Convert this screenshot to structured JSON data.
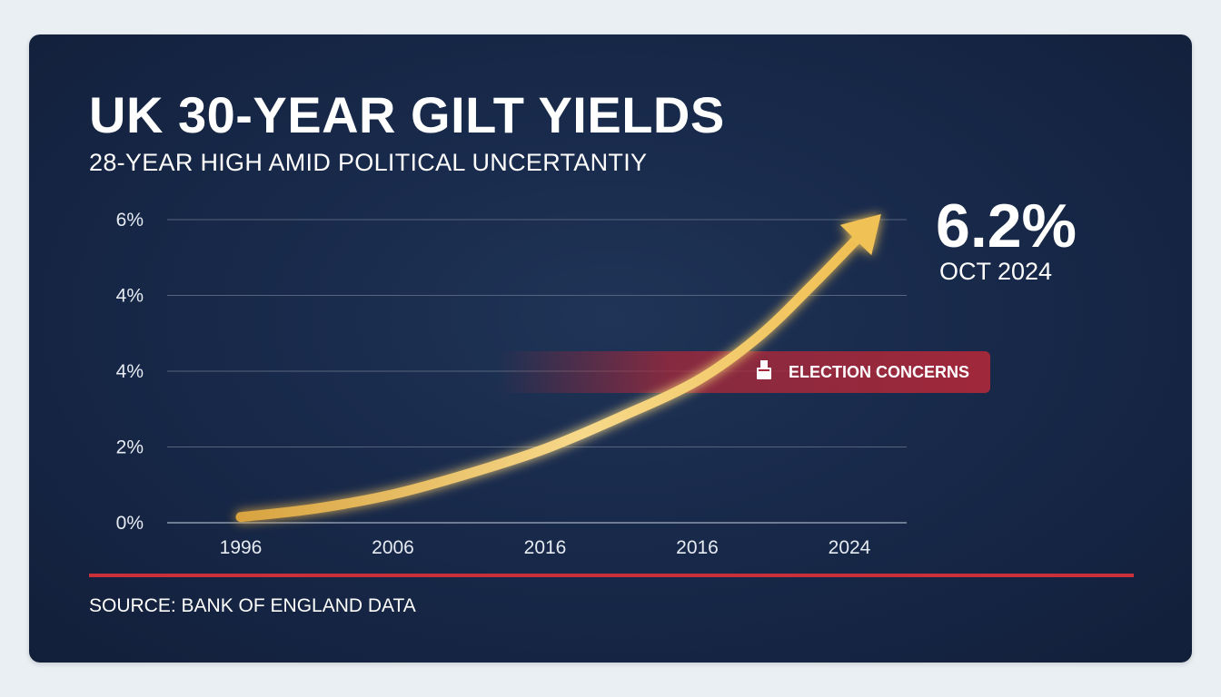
{
  "chart_data": {
    "type": "line",
    "title": "UK 30-YEAR GILT YIELDS",
    "subtitle": "28-YEAR HIGH AMID POLITICAL UNCERTANTIY",
    "y_tick_labels": [
      "0%",
      "2%",
      "4%",
      "4%",
      "6%"
    ],
    "x_tick_labels": [
      "1996",
      "2006",
      "2016",
      "2016",
      "2024"
    ],
    "series": [
      {
        "color": "#f0c257",
        "points": [
          {
            "x": 0.0,
            "y": 0.15
          },
          {
            "x": 0.5,
            "y": 0.38
          },
          {
            "x": 1.0,
            "y": 0.75
          },
          {
            "x": 1.5,
            "y": 1.3
          },
          {
            "x": 2.0,
            "y": 1.95
          },
          {
            "x": 2.5,
            "y": 2.8
          },
          {
            "x": 3.0,
            "y": 3.75
          },
          {
            "x": 3.4,
            "y": 4.9
          },
          {
            "x": 3.75,
            "y": 6.25
          },
          {
            "x": 4.1,
            "y": 7.7
          }
        ]
      }
    ],
    "ylim": [
      0,
      8
    ],
    "grid": true,
    "callout": {
      "value": "6.2%",
      "date": "OCT 2024"
    },
    "annotation": {
      "label": "ELECTION CONCERNS",
      "icon": "ballot-box-icon",
      "y": 4,
      "color": "#a8283a"
    },
    "source": "SOURCE: BANK OF ENGLAND DATA",
    "accent_color": "#c9303a"
  }
}
